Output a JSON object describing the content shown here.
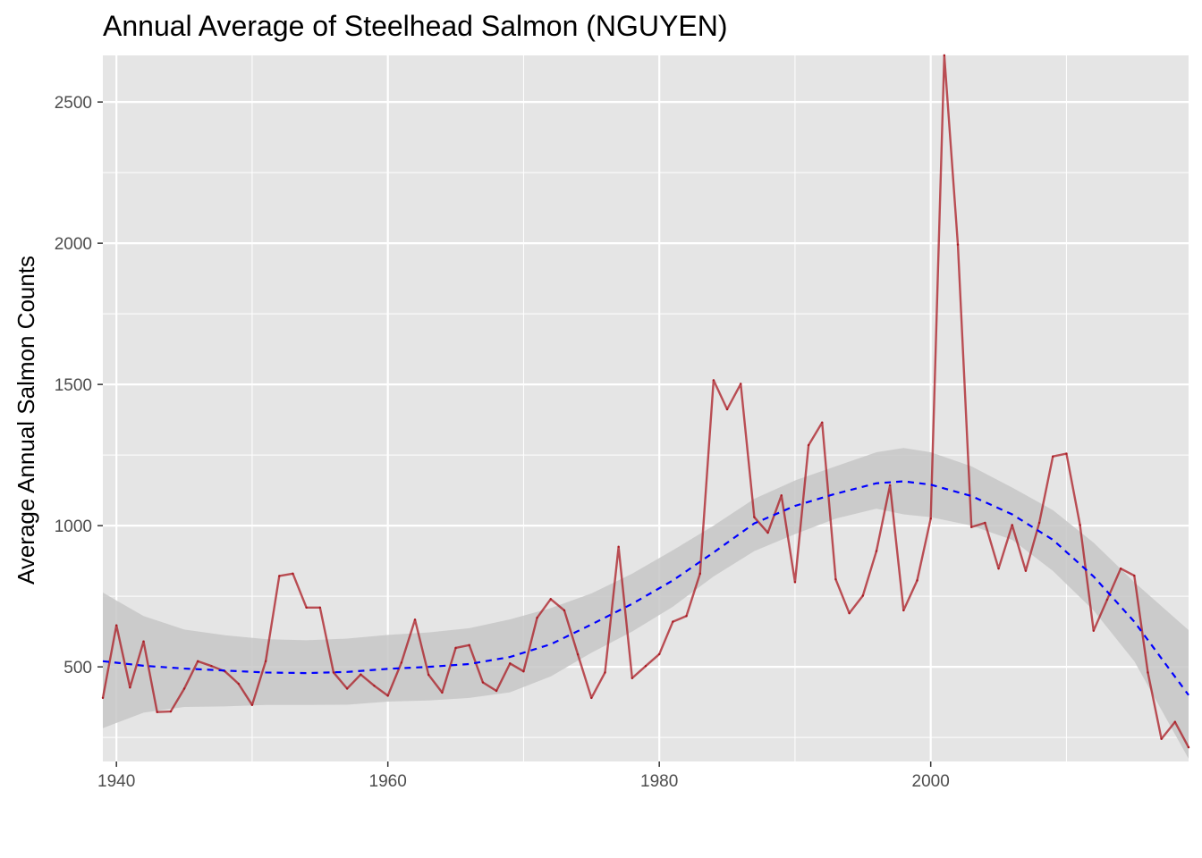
{
  "chart_data": {
    "type": "line",
    "title": "Annual Average of Steelhead Salmon (NGUYEN)",
    "xlabel": "",
    "ylabel": "Average Annual Salmon Counts",
    "xlim": [
      1939,
      2019
    ],
    "ylim": [
      165,
      2665
    ],
    "x_ticks": [
      1940,
      1960,
      1980,
      2000
    ],
    "y_ticks": [
      500,
      1000,
      1500,
      2000,
      2500
    ],
    "grid": true,
    "legend": "none",
    "colors": {
      "panel": "#e5e5e5",
      "grid": "#ffffff",
      "line": "#aa1a22",
      "smooth": "#0000ff",
      "band": "#c7c7c7"
    },
    "series": [
      {
        "type": "line",
        "x": [
          1939,
          1940,
          1941,
          1942,
          1943,
          1944,
          1945,
          1946,
          1947,
          1948,
          1949,
          1950,
          1951,
          1952,
          1953,
          1954,
          1955,
          1956,
          1957,
          1958,
          1959,
          1960,
          1961,
          1962,
          1963,
          1964,
          1965,
          1966,
          1967,
          1968,
          1969,
          1970,
          1971,
          1972,
          1973,
          1974,
          1975,
          1976,
          1977,
          1978,
          1979,
          1980,
          1981,
          1982,
          1983,
          1984,
          1985,
          1986,
          1987,
          1988,
          1989,
          1990,
          1991,
          1992,
          1993,
          1994,
          1995,
          1996,
          1997,
          1998,
          1999,
          2000,
          2001,
          2002,
          2003,
          2004,
          2005,
          2006,
          2007,
          2008,
          2009,
          2010,
          2011,
          2012,
          2013,
          2014,
          2015,
          2016,
          2017,
          2018,
          2019
        ],
        "values": [
          390,
          647,
          427,
          590,
          340,
          342,
          423,
          520,
          503,
          484,
          440,
          365,
          520,
          822,
          830,
          710,
          710,
          480,
          423,
          473,
          433,
          398,
          515,
          667,
          472,
          409,
          567,
          577,
          445,
          415,
          512,
          484,
          674,
          740,
          700,
          544,
          390,
          480,
          925,
          460,
          503,
          545,
          660,
          680,
          830,
          1515,
          1412,
          1502,
          1030,
          975,
          1107,
          800,
          1285,
          1365,
          810,
          690,
          752,
          910,
          1143,
          700,
          806,
          1025,
          2665,
          1995,
          995,
          1010,
          848,
          1002,
          840,
          1010,
          1245,
          1255,
          1002,
          628,
          738,
          848,
          823,
          480,
          245,
          305,
          215
        ]
      },
      {
        "type": "smooth",
        "x": [
          1939,
          1942,
          1945,
          1948,
          1951,
          1954,
          1957,
          1960,
          1963,
          1966,
          1969,
          1972,
          1975,
          1978,
          1981,
          1984,
          1987,
          1990,
          1993,
          1996,
          1998,
          2000,
          2003,
          2006,
          2009,
          2012,
          2015,
          2019
        ],
        "values": [
          520,
          504,
          494,
          487,
          480,
          478,
          482,
          493,
          500,
          510,
          535,
          580,
          650,
          723,
          806,
          905,
          1008,
          1070,
          1113,
          1150,
          1157,
          1145,
          1105,
          1040,
          950,
          820,
          660,
          400
        ],
        "lower": [
          283,
          338,
          358,
          360,
          365,
          365,
          366,
          377,
          381,
          390,
          410,
          466,
          550,
          625,
          713,
          820,
          910,
          970,
          1025,
          1060,
          1040,
          1030,
          1000,
          950,
          840,
          700,
          520,
          175
        ],
        "upper": [
          763,
          680,
          632,
          612,
          598,
          594,
          600,
          613,
          622,
          637,
          668,
          708,
          760,
          830,
          913,
          1000,
          1095,
          1160,
          1210,
          1260,
          1275,
          1260,
          1210,
          1135,
          1055,
          940,
          800,
          630
        ]
      }
    ]
  }
}
